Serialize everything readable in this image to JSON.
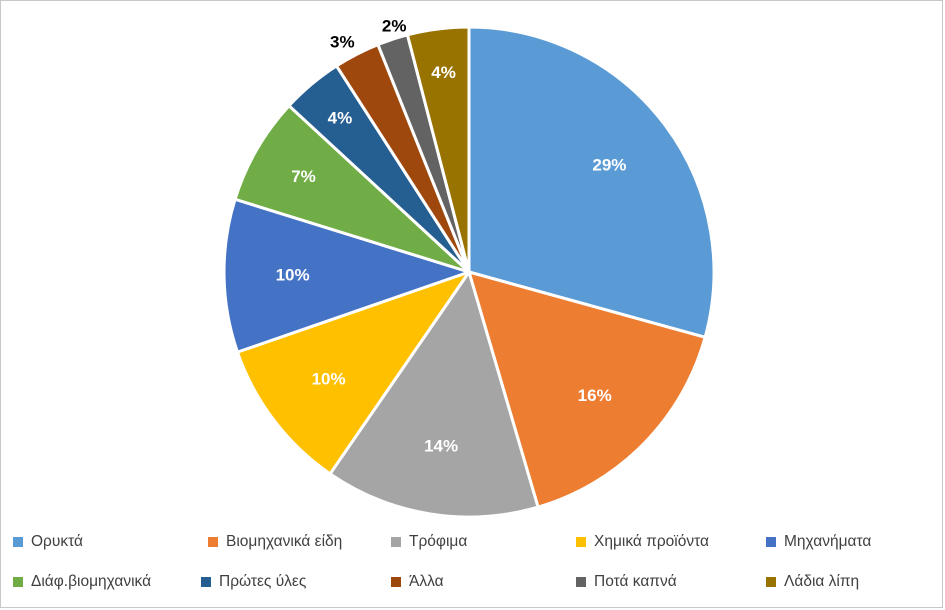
{
  "chart_data": {
    "type": "pie",
    "title": "",
    "slices": [
      {
        "label": "Ορυκτά",
        "value": 29,
        "value_label": "29%",
        "color": "#5b9bd5"
      },
      {
        "label": "Βιομηχανικά είδη",
        "value": 16,
        "value_label": "16%",
        "color": "#ed7d31"
      },
      {
        "label": "Τρόφιμα",
        "value": 14,
        "value_label": "14%",
        "color": "#a5a5a5"
      },
      {
        "label": "Χημικά προϊόντα",
        "value": 10,
        "value_label": "10%",
        "color": "#ffc000"
      },
      {
        "label": "Μηχανήματα",
        "value": 10,
        "value_label": "10%",
        "color": "#4472c4"
      },
      {
        "label": "Διάφ.βιομηχανικά",
        "value": 7,
        "value_label": "7%",
        "color": "#70ad47"
      },
      {
        "label": "Πρώτες ύλες",
        "value": 4,
        "value_label": "4%",
        "color": "#255e91"
      },
      {
        "label": "Άλλα",
        "value": 3,
        "value_label": "3%",
        "color": "#9e480e"
      },
      {
        "label": "Ποτά καπνά",
        "value": 2,
        "value_label": "2%",
        "color": "#636363"
      },
      {
        "label": "Λάδια λίπη",
        "value": 4,
        "value_label": "4%",
        "color": "#997300"
      }
    ],
    "legend_position": "bottom",
    "label_color": "#ffffff",
    "outer_label_color": "#000000"
  }
}
